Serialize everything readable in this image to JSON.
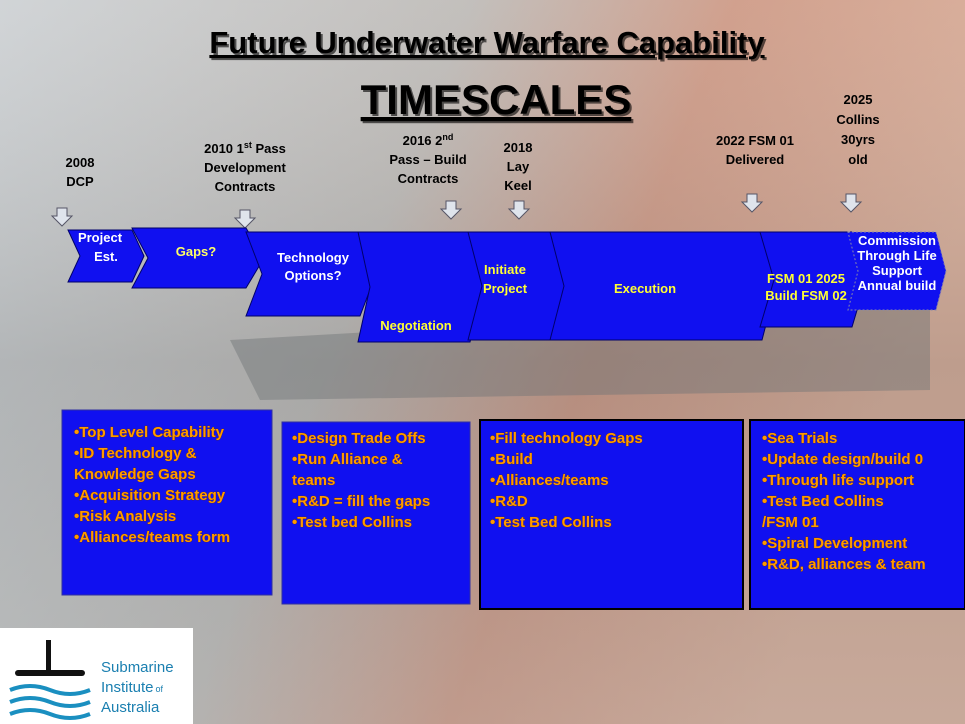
{
  "title": "Future Underwater Warfare Capability",
  "subtitle": "TIMESCALES",
  "milestones": [
    {
      "lines": [
        "2008",
        "DCP"
      ]
    },
    {
      "lines": [
        "2010 1",
        "st",
        " Pass",
        "Development",
        "Contracts"
      ]
    },
    {
      "lines": [
        "2016  2",
        "nd",
        "Pass – Build",
        "Contracts"
      ]
    },
    {
      "lines": [
        "2018",
        "Lay",
        "Keel"
      ]
    },
    {
      "lines": [
        "2022 FSM 01",
        "Delivered"
      ]
    },
    {
      "lines": [
        "2025",
        "Collins",
        "30yrs",
        "old"
      ]
    }
  ],
  "phases": [
    {
      "lines": [
        "Project",
        "Est."
      ]
    },
    {
      "lines": [
        "Gaps?"
      ]
    },
    {
      "lines": [
        "Technology",
        "Options?"
      ]
    },
    {
      "lines": [
        "Negotiation"
      ]
    },
    {
      "lines": [
        "Initiate",
        "Project"
      ]
    },
    {
      "lines": [
        "Execution"
      ]
    },
    {
      "lines": [
        "FSM 01 2025",
        "Build FSM 02"
      ]
    },
    {
      "lines": [
        "Commission",
        "Through Life",
        "Support",
        "Annual build"
      ]
    }
  ],
  "boxes": [
    {
      "items": [
        "•Top Level Capability",
        "•ID Technology &",
        "Knowledge Gaps",
        "•Acquisition Strategy",
        "•Risk Analysis",
        "•Alliances/teams form"
      ]
    },
    {
      "items": [
        "•Design Trade Offs",
        "•Run  Alliance &",
        "teams",
        "•R&D = fill the gaps",
        "•Test bed Collins"
      ]
    },
    {
      "items": [
        "•Fill technology Gaps",
        "•Build",
        "•Alliances/teams",
        "•R&D",
        "•Test Bed Collins"
      ]
    },
    {
      "items": [
        "•Sea Trials",
        "•Update design/build 0",
        "•Through life support",
        "•Test Bed Collins",
        "/FSM 01",
        "•Spiral Development",
        "•R&D, alliances & team"
      ]
    }
  ],
  "logo": [
    "Submarine",
    "Institute",
    "of",
    "Australia"
  ]
}
